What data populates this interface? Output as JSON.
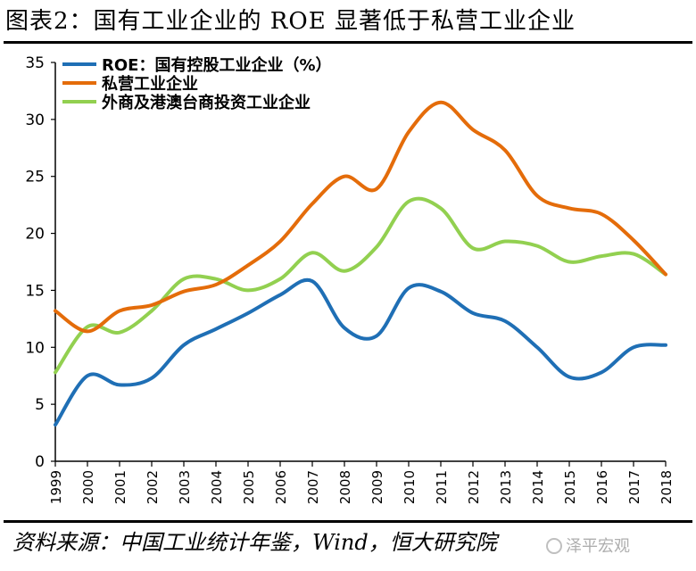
{
  "title": "图表2：国有工业企业的 ROE 显著低于私营工业企业",
  "source": "资料来源：中国工业统计年鉴，Wind，恒大研究院",
  "watermark": "泽平宏观",
  "chart_data": {
    "type": "line",
    "x": [
      "1999",
      "2000",
      "2001",
      "2002",
      "2003",
      "2004",
      "2005",
      "2006",
      "2007",
      "2008",
      "2009",
      "2010",
      "2011",
      "2012",
      "2013",
      "2014",
      "2015",
      "2016",
      "2017",
      "2018"
    ],
    "ylim": [
      0,
      35
    ],
    "yticks": [
      0,
      5,
      10,
      15,
      20,
      25,
      30,
      35
    ],
    "grid": false,
    "legend_position": "top-left",
    "series": [
      {
        "name": "ROE：国有控股工业企业（%）",
        "color": "#1f6fb5",
        "values": [
          3.2,
          7.5,
          6.7,
          7.3,
          10.2,
          11.6,
          13.0,
          14.6,
          15.8,
          11.7,
          11.0,
          15.2,
          14.9,
          13.0,
          12.3,
          10.0,
          7.4,
          7.8,
          10.0,
          10.2
        ]
      },
      {
        "name": "私营工业企业",
        "color": "#e46c0a",
        "values": [
          13.2,
          11.4,
          13.2,
          13.7,
          14.9,
          15.5,
          17.2,
          19.3,
          22.6,
          25.0,
          23.9,
          28.9,
          31.5,
          29.1,
          27.3,
          23.3,
          22.2,
          21.7,
          19.4,
          16.4
        ]
      },
      {
        "name": "外商及港澳台商投资工业企业",
        "color": "#92d050",
        "values": [
          7.8,
          11.8,
          11.3,
          13.2,
          16.0,
          16.0,
          15.0,
          16.0,
          18.3,
          16.7,
          18.8,
          22.8,
          22.2,
          18.7,
          19.3,
          18.9,
          17.5,
          18.0,
          18.2,
          16.4
        ]
      }
    ]
  }
}
